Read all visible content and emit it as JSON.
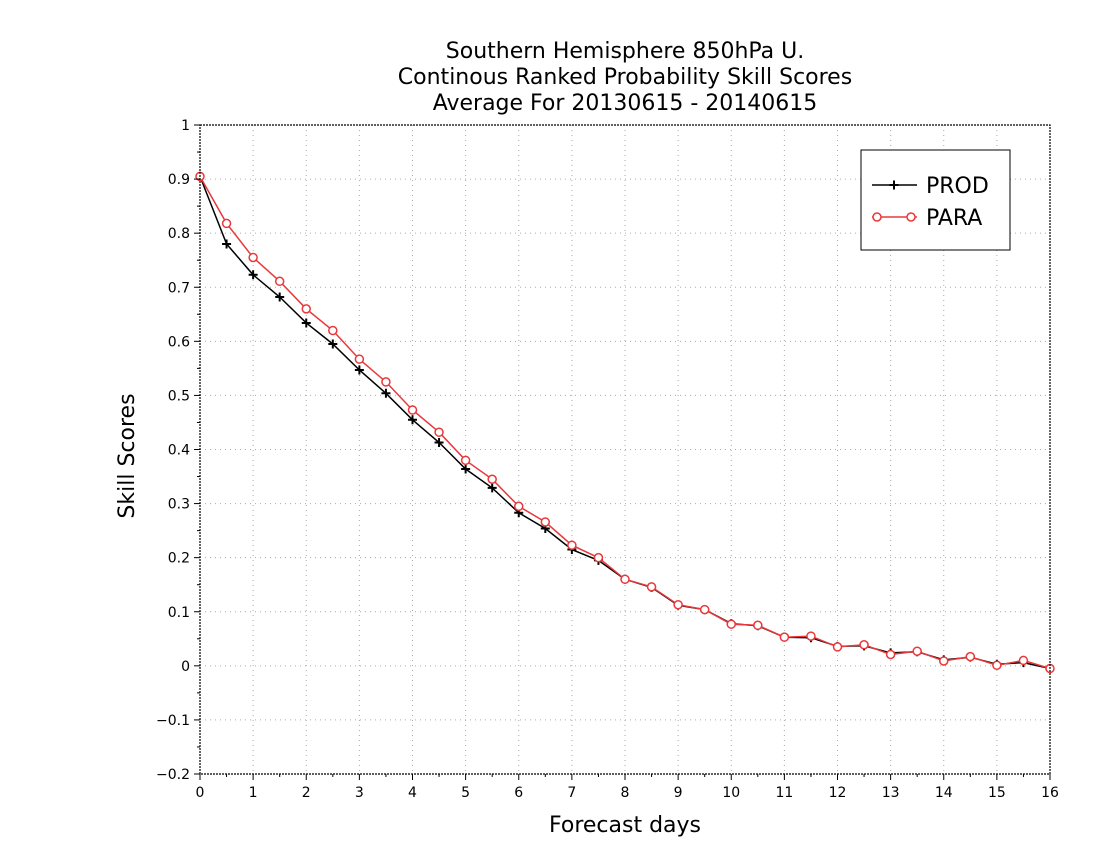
{
  "chart_data": {
    "type": "line",
    "title": [
      "Southern Hemisphere 850hPa U.",
      "Continous Ranked Probability Skill Scores",
      "Average For 20130615 - 20140615"
    ],
    "xlabel": "Forecast days",
    "ylabel": "Skill Scores",
    "xlim": [
      0,
      16
    ],
    "ylim": [
      -0.2,
      1
    ],
    "grid": true,
    "legend_position": "top-right",
    "x_ticks": [
      "0",
      "1",
      "2",
      "3",
      "4",
      "5",
      "6",
      "7",
      "8",
      "9",
      "10",
      "11",
      "12",
      "13",
      "14",
      "15",
      "16"
    ],
    "y_ticks": [
      "−0.2",
      "−0.1",
      "0",
      "0.1",
      "0.2",
      "0.3",
      "0.4",
      "0.5",
      "0.6",
      "0.7",
      "0.8",
      "0.9",
      "1"
    ],
    "x": [
      0,
      0.5,
      1,
      1.5,
      2,
      2.5,
      3,
      3.5,
      4,
      4.5,
      5,
      5.5,
      6,
      6.5,
      7,
      7.5,
      8,
      8.5,
      9,
      9.5,
      10,
      10.5,
      11,
      11.5,
      12,
      12.5,
      13,
      13.5,
      14,
      14.5,
      15,
      15.5,
      16
    ],
    "series": [
      {
        "name": "PROD",
        "color": "#000000",
        "marker": "plus",
        "values": [
          0.905,
          0.78,
          0.723,
          0.682,
          0.634,
          0.595,
          0.547,
          0.504,
          0.455,
          0.413,
          0.364,
          0.329,
          0.283,
          0.254,
          0.215,
          0.195,
          0.16,
          0.145,
          0.112,
          0.104,
          0.078,
          0.074,
          0.053,
          0.052,
          0.036,
          0.037,
          0.024,
          0.026,
          0.011,
          0.016,
          0.003,
          0.006,
          -0.005
        ]
      },
      {
        "name": "PARA",
        "color": "#e8383a",
        "marker": "circle",
        "values": [
          0.905,
          0.818,
          0.755,
          0.711,
          0.66,
          0.62,
          0.567,
          0.525,
          0.473,
          0.432,
          0.38,
          0.345,
          0.295,
          0.266,
          0.223,
          0.2,
          0.16,
          0.146,
          0.113,
          0.104,
          0.077,
          0.075,
          0.053,
          0.055,
          0.035,
          0.039,
          0.021,
          0.027,
          0.009,
          0.017,
          0.001,
          0.01,
          -0.005
        ]
      }
    ]
  }
}
